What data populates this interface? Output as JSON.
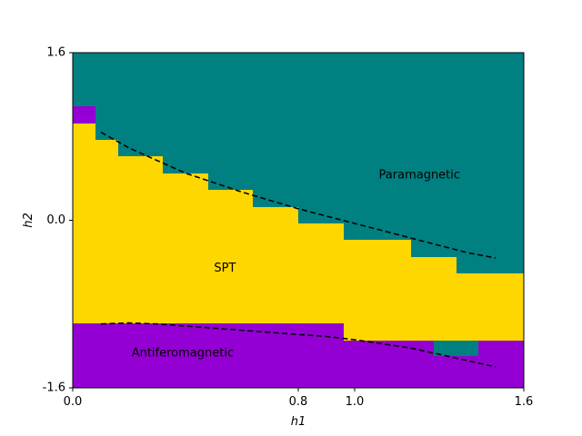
{
  "chart_data": {
    "type": "heatmap",
    "xlabel": "h1",
    "ylabel": "h2",
    "xlim": [
      0.0,
      1.6
    ],
    "ylim": [
      -1.6,
      1.6
    ],
    "xticks": [
      {
        "value": 0.0,
        "label": "0.0"
      },
      {
        "value": 0.8,
        "label": "0.8"
      },
      {
        "value": 1.0,
        "label": "1.0"
      },
      {
        "value": 1.6,
        "label": "1.6"
      }
    ],
    "yticks": [
      {
        "value": 1.6,
        "label": "1.6"
      },
      {
        "value": 0.0,
        "label": "0.0"
      },
      {
        "value": -1.6,
        "label": "-1.6"
      }
    ],
    "grid": false,
    "phase_colors": {
      "Paramagnetic": "#008080",
      "SPT": "#ffd700",
      "Antiferomagnetic": "#9400d3"
    },
    "region_labels": [
      {
        "text": "Paramagnetic",
        "x": 1.23,
        "y": 0.43
      },
      {
        "text": "SPT",
        "x": 0.54,
        "y": -0.46
      },
      {
        "text": "Antiferomagnetic",
        "x": 0.39,
        "y": -1.27
      }
    ],
    "phase_columns": [
      {
        "x0": 0.0,
        "x1": 0.08,
        "spt_top": 0.92,
        "spt_bottom": -0.98,
        "afm_patch": [
          0.92,
          1.09
        ]
      },
      {
        "x0": 0.08,
        "x1": 0.16,
        "spt_top": 0.77,
        "spt_bottom": -0.98
      },
      {
        "x0": 0.16,
        "x1": 0.32,
        "spt_top": 0.61,
        "spt_bottom": -0.98
      },
      {
        "x0": 0.32,
        "x1": 0.48,
        "spt_top": 0.45,
        "spt_bottom": -0.98
      },
      {
        "x0": 0.48,
        "x1": 0.64,
        "spt_top": 0.29,
        "spt_bottom": -0.98
      },
      {
        "x0": 0.64,
        "x1": 0.8,
        "spt_top": 0.13,
        "spt_bottom": -0.98
      },
      {
        "x0": 0.8,
        "x1": 0.96,
        "spt_top": -0.03,
        "spt_bottom": -0.98
      },
      {
        "x0": 0.96,
        "x1": 1.2,
        "spt_top": -0.19,
        "spt_bottom": -1.15
      },
      {
        "x0": 1.2,
        "x1": 1.28,
        "spt_top": -0.35,
        "spt_bottom": -1.15
      },
      {
        "x0": 1.28,
        "x1": 1.36,
        "spt_top": -0.35,
        "spt_bottom": -1.15,
        "para_patch": [
          -1.3,
          -1.15
        ]
      },
      {
        "x0": 1.36,
        "x1": 1.44,
        "spt_top": -0.51,
        "spt_bottom": -1.15,
        "para_patch": [
          -1.3,
          -1.15
        ]
      },
      {
        "x0": 1.44,
        "x1": 1.6,
        "spt_top": -0.51,
        "spt_bottom": -1.15
      }
    ],
    "boundary_curves": [
      {
        "style": "dashed",
        "color": "#000000",
        "points": [
          [
            0.1,
            0.84
          ],
          [
            0.2,
            0.69
          ],
          [
            0.3,
            0.57
          ],
          [
            0.4,
            0.45
          ],
          [
            0.5,
            0.36
          ],
          [
            0.6,
            0.27
          ],
          [
            0.7,
            0.19
          ],
          [
            0.8,
            0.11
          ],
          [
            0.9,
            0.04
          ],
          [
            1.0,
            -0.03
          ],
          [
            1.1,
            -0.1
          ],
          [
            1.2,
            -0.17
          ],
          [
            1.3,
            -0.24
          ],
          [
            1.4,
            -0.31
          ],
          [
            1.5,
            -0.36
          ]
        ]
      },
      {
        "style": "dashed",
        "color": "#000000",
        "points": [
          [
            0.1,
            -0.99
          ],
          [
            0.2,
            -0.98
          ],
          [
            0.3,
            -0.99
          ],
          [
            0.4,
            -1.01
          ],
          [
            0.5,
            -1.03
          ],
          [
            0.6,
            -1.05
          ],
          [
            0.7,
            -1.07
          ],
          [
            0.8,
            -1.09
          ],
          [
            0.9,
            -1.11
          ],
          [
            1.0,
            -1.14
          ],
          [
            1.1,
            -1.18
          ],
          [
            1.2,
            -1.22
          ],
          [
            1.3,
            -1.28
          ],
          [
            1.4,
            -1.34
          ],
          [
            1.5,
            -1.4
          ]
        ]
      }
    ]
  }
}
